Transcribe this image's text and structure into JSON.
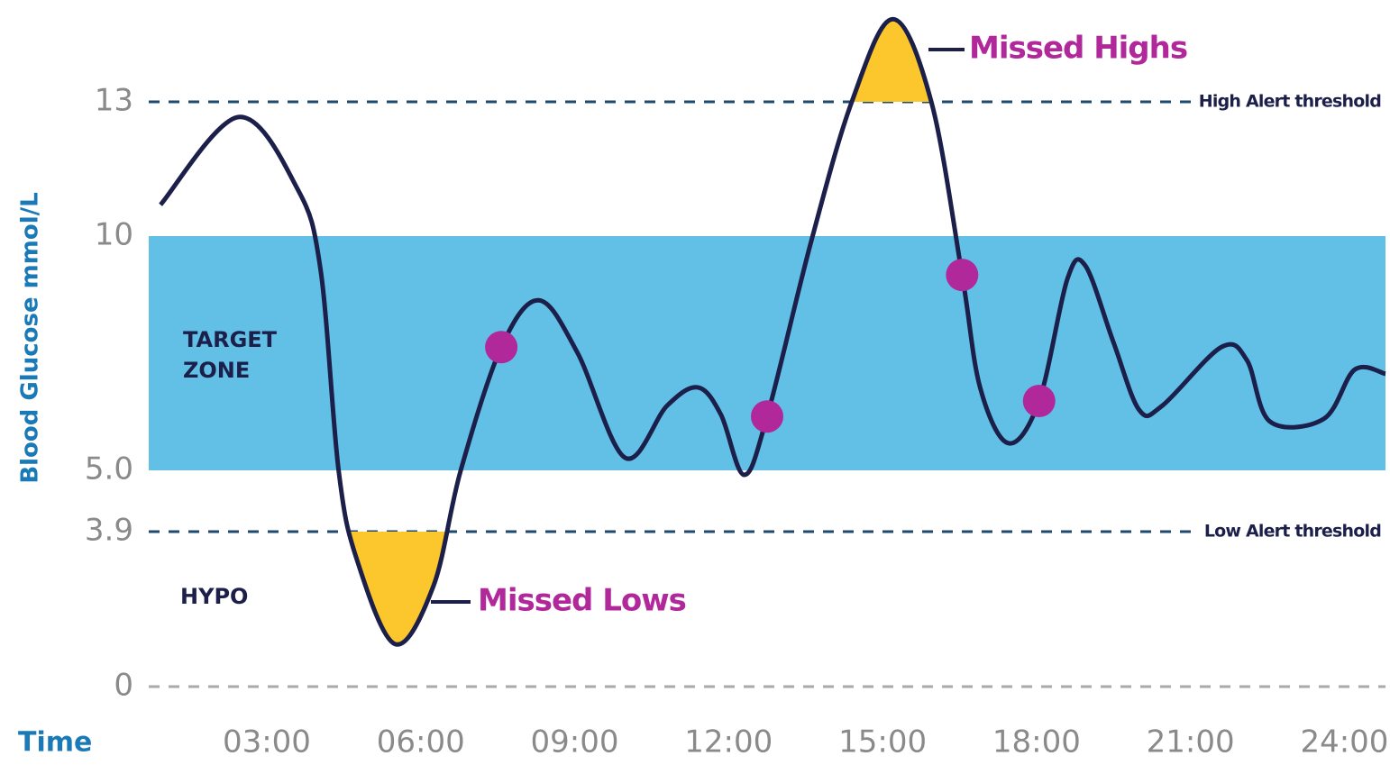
{
  "chart_data": {
    "type": "line",
    "y_label": "Blood Glucose mmol/L",
    "x_label": "Time",
    "xlim": [
      0.7,
      24.8
    ],
    "xticks": [
      {
        "value": 3,
        "label": "03:00"
      },
      {
        "value": 6,
        "label": "06:00"
      },
      {
        "value": 9,
        "label": "09:00"
      },
      {
        "value": 12,
        "label": "12:00"
      },
      {
        "value": 15,
        "label": "15:00"
      },
      {
        "value": 18,
        "label": "18:00"
      },
      {
        "value": 21,
        "label": "21:00"
      },
      {
        "value": 24,
        "label": "24:00"
      }
    ],
    "ylim": [
      0,
      15.2
    ],
    "yticks": [
      0,
      3.9,
      {
        "value": 5,
        "label": "5.0"
      },
      10,
      13
    ],
    "x": [
      0.93,
      2.45,
      3.6,
      4.05,
      4.4,
      4.75,
      5.5,
      6.25,
      6.78,
      7.57,
      8.3,
      9.05,
      9.98,
      10.8,
      11.4,
      11.85,
      12.3,
      12.75,
      13.6,
      14.4,
      15.2,
      15.95,
      16.55,
      16.9,
      17.45,
      18.05,
      18.6,
      18.95,
      19.5,
      20.0,
      20.45,
      21.6,
      22.1,
      22.55,
      23.6,
      24.2,
      24.8
    ],
    "values": [
      10.7,
      12.66,
      11.05,
      9.27,
      5.0,
      3.22,
      1.07,
      2.54,
      5.0,
      7.63,
      8.63,
      7.52,
      5.27,
      6.38,
      6.77,
      6.19,
      4.92,
      6.15,
      9.85,
      13,
      14.96,
      13,
      9.17,
      6.77,
      5.58,
      6.48,
      9.08,
      9.37,
      7.73,
      6.29,
      6.38,
      7.63,
      7.35,
      6.04,
      6.1,
      7.15,
      7.06
    ],
    "color": "#1b1f4a",
    "points": {
      "x": [
        7.57,
        12.75,
        16.55,
        18.05
      ],
      "values": [
        7.63,
        6.15,
        9.17,
        6.48
      ],
      "color": "#b0289a"
    },
    "target_zone": {
      "label": [
        "TARGET",
        "ZONE"
      ],
      "range": [
        5,
        10
      ],
      "color": "#62c0e6"
    },
    "hypo_label": "HYPO",
    "thresholds": [
      {
        "label": "High Alert threshold",
        "value": 13
      },
      {
        "label": "Low Alert threshold",
        "value": 3.9
      }
    ],
    "missed_color": "#fcc72c",
    "annotations": [
      "Missed Highs",
      "Missed Lows"
    ]
  }
}
